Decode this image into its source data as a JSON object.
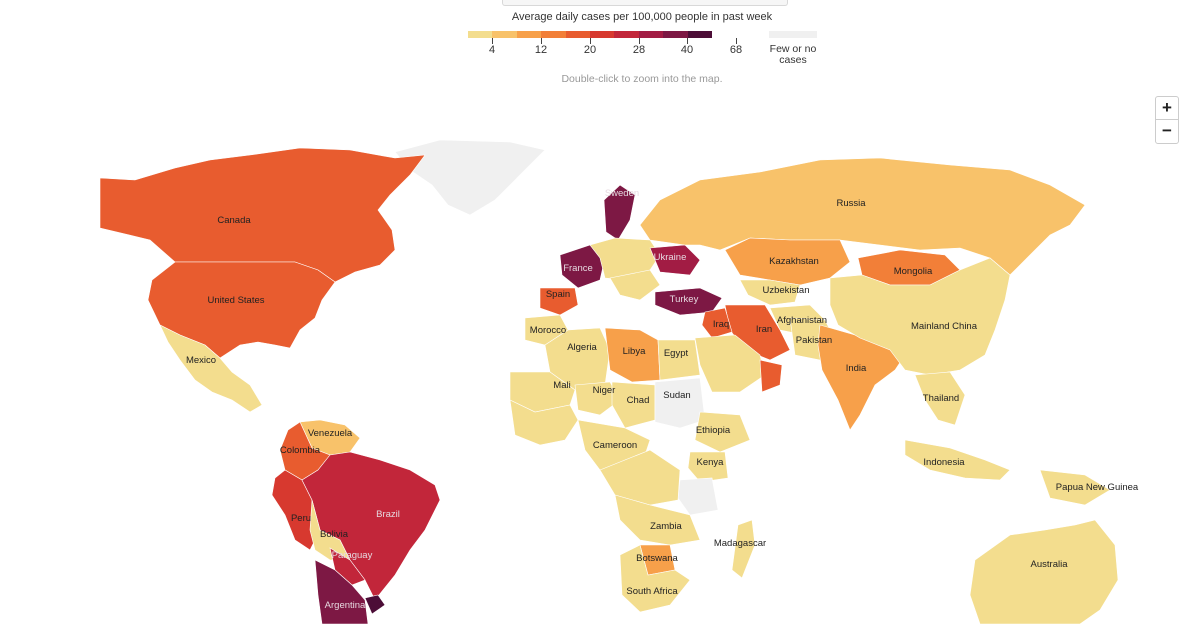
{
  "legend": {
    "title": "Average daily cases per 100,000 people in past week",
    "colors": [
      "#f3dd8e",
      "#f8c26a",
      "#f7a04a",
      "#f27f38",
      "#e85c2f",
      "#d7392f",
      "#c2263a",
      "#a21c44",
      "#7d1844",
      "#4c0d37"
    ],
    "ticks": [
      "4",
      "12",
      "20",
      "28",
      "40",
      "68"
    ],
    "no_cases_label": "Few or no\ncases",
    "no_cases_color": "#f0f0f0"
  },
  "hint": "Double-click to zoom into the map.",
  "zoom": {
    "in_label": "+",
    "out_label": "−"
  },
  "map": {
    "regions": [
      {
        "name": "Canada",
        "color": "#e85c2f",
        "label": "Canada"
      },
      {
        "name": "United States",
        "color": "#e85c2f",
        "label": "United States"
      },
      {
        "name": "Greenland",
        "color": "#f0f0f0",
        "label": ""
      },
      {
        "name": "Mexico",
        "color": "#f3dd8e",
        "label": "Mexico"
      },
      {
        "name": "Colombia",
        "color": "#e85c2f",
        "label": "Colombia"
      },
      {
        "name": "Venezuela",
        "color": "#f8c26a",
        "label": "Venezuela"
      },
      {
        "name": "Peru",
        "color": "#d7392f",
        "label": "Peru"
      },
      {
        "name": "Brazil",
        "color": "#c2263a",
        "label": "Brazil"
      },
      {
        "name": "Bolivia",
        "color": "#f3dd8e",
        "label": "Bolivia"
      },
      {
        "name": "Paraguay",
        "color": "#c2263a",
        "label": "Paraguay"
      },
      {
        "name": "Argentina",
        "color": "#7d1844",
        "label": "Argentina"
      },
      {
        "name": "Uruguay",
        "color": "#4c0d37",
        "label": ""
      },
      {
        "name": "Sweden",
        "color": "#7d1844",
        "label": "Sweden"
      },
      {
        "name": "France",
        "color": "#7d1844",
        "label": "France"
      },
      {
        "name": "Spain",
        "color": "#e85c2f",
        "label": "Spain"
      },
      {
        "name": "Ukraine",
        "color": "#a21c44",
        "label": "Ukraine"
      },
      {
        "name": "Turkey",
        "color": "#7d1844",
        "label": "Turkey"
      },
      {
        "name": "Russia",
        "color": "#f8c26a",
        "label": "Russia"
      },
      {
        "name": "Kazakhstan",
        "color": "#f7a04a",
        "label": "Kazakhstan"
      },
      {
        "name": "Mongolia",
        "color": "#f27f38",
        "label": "Mongolia"
      },
      {
        "name": "Uzbekistan",
        "color": "#f3dd8e",
        "label": "Uzbekistan"
      },
      {
        "name": "Afghanistan",
        "color": "#f3dd8e",
        "label": "Afghanistan"
      },
      {
        "name": "Iran",
        "color": "#e85c2f",
        "label": "Iran"
      },
      {
        "name": "Iraq",
        "color": "#e85c2f",
        "label": "Iraq"
      },
      {
        "name": "Pakistan",
        "color": "#f3dd8e",
        "label": "Pakistan"
      },
      {
        "name": "India",
        "color": "#f7a04a",
        "label": "India"
      },
      {
        "name": "Mainland China",
        "color": "#f3dd8e",
        "label": "Mainland China"
      },
      {
        "name": "Thailand",
        "color": "#f3dd8e",
        "label": "Thailand"
      },
      {
        "name": "Indonesia",
        "color": "#f3dd8e",
        "label": "Indonesia"
      },
      {
        "name": "Papua New Guinea",
        "color": "#f3dd8e",
        "label": "Papua New Guinea"
      },
      {
        "name": "Australia",
        "color": "#f3dd8e",
        "label": "Australia"
      },
      {
        "name": "Morocco",
        "color": "#f3dd8e",
        "label": "Morocco"
      },
      {
        "name": "Algeria",
        "color": "#f3dd8e",
        "label": "Algeria"
      },
      {
        "name": "Libya",
        "color": "#f7a04a",
        "label": "Libya"
      },
      {
        "name": "Egypt",
        "color": "#f3dd8e",
        "label": "Egypt"
      },
      {
        "name": "Mali",
        "color": "#f3dd8e",
        "label": "Mali"
      },
      {
        "name": "Niger",
        "color": "#f3dd8e",
        "label": "Niger"
      },
      {
        "name": "Chad",
        "color": "#f3dd8e",
        "label": "Chad"
      },
      {
        "name": "Sudan",
        "color": "#f0f0f0",
        "label": "Sudan"
      },
      {
        "name": "Ethiopia",
        "color": "#f3dd8e",
        "label": "Ethiopia"
      },
      {
        "name": "Cameroon",
        "color": "#f3dd8e",
        "label": "Cameroon"
      },
      {
        "name": "Kenya",
        "color": "#f3dd8e",
        "label": "Kenya"
      },
      {
        "name": "Tanzania",
        "color": "#f0f0f0",
        "label": ""
      },
      {
        "name": "Zambia",
        "color": "#f3dd8e",
        "label": "Zambia"
      },
      {
        "name": "Madagascar",
        "color": "#f3dd8e",
        "label": "Madagascar"
      },
      {
        "name": "Botswana",
        "color": "#f7a04a",
        "label": "Botswana"
      },
      {
        "name": "South Africa",
        "color": "#f3dd8e",
        "label": "South Africa"
      },
      {
        "name": "Saudi Arabia",
        "color": "#f3dd8e",
        "label": ""
      },
      {
        "name": "Oman",
        "color": "#e85c2f",
        "label": ""
      }
    ]
  }
}
